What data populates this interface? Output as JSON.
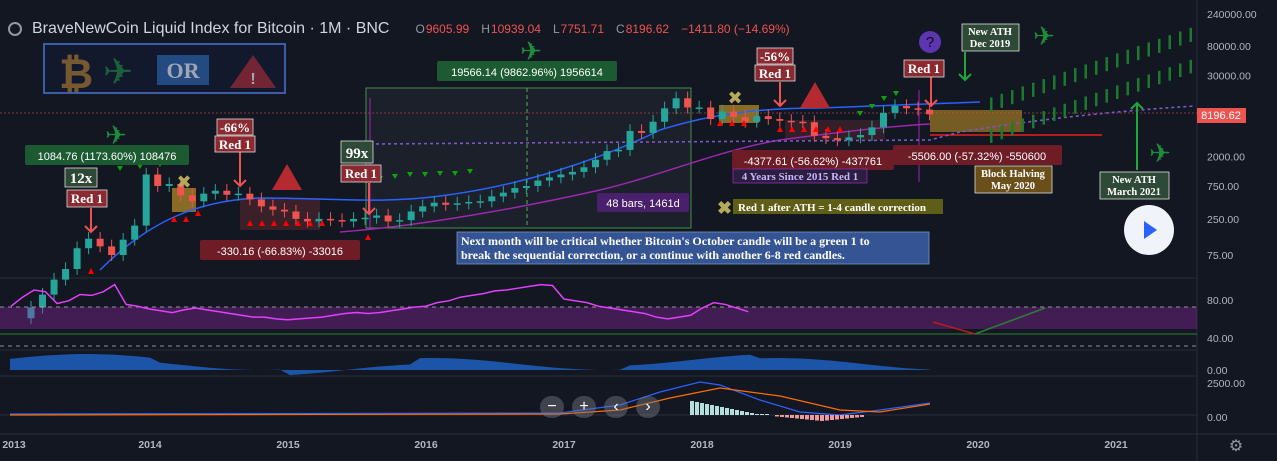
{
  "header": {
    "title": "BraveNewCoin Liquid Index for Bitcoin · 1M · BNC",
    "o_label": "O",
    "o": "9605.99",
    "h_label": "H",
    "h": "10939.04",
    "l_label": "L",
    "l": "7751.71",
    "c_label": "C",
    "c": "8196.62",
    "change": "−1411.80 (−14.69%)"
  },
  "logo_text": "OR",
  "price_tag": "8196.62",
  "zoom_controls": [
    "−",
    "+",
    "‹",
    "›"
  ],
  "colors": {
    "up": "#26a69a",
    "down": "#ef5350",
    "bg": "#131722",
    "rsi": "#e040fb",
    "ema": "#2962ff",
    "ma": "#9c27b0",
    "buy": "#0ba50b",
    "sell": "#ff0000"
  },
  "icons": [
    "bitcoin-icon",
    "airplane-icon",
    "warning-icon",
    "question-icon",
    "play-icon",
    "settings-icon"
  ],
  "annotations": {
    "count12": "12x",
    "count99": "99x",
    "red1": "Red 1",
    "m66": "-66%",
    "m56": "-56%",
    "gain1": "1084.76 (1173.60%) 108476",
    "gain2": "19566.14 (9862.96%) 1956614",
    "loss1": "-330.16 (-66.83%) -33016",
    "loss2": "-4377.61 (-56.62%) -437761",
    "loss3": "-5506.00 (-57.32%) -550600",
    "bars": "48 bars, 1461d",
    "four_years": "4 Years Since 2015 Red 1",
    "red1_after": "Red 1 after ATH = 1-4 candle correction",
    "critical": "Next month will be critical whether Bitcoin's October candle will be a green 1 to break the sequential correction, or a continue with another 6-8 red candles.",
    "ath2019a": "New ATH",
    "ath2019b": "Dec 2019",
    "ath2021a": "New ATH",
    "ath2021b": "March 2021",
    "halvinga": "Block Halving",
    "halvingb": "May 2020"
  },
  "chart_data": [
    {
      "type": "candlestick",
      "scale": "log",
      "x_ticks": [
        "2013",
        "2014",
        "2015",
        "2016",
        "2017",
        "2018",
        "2019",
        "2020",
        "2021"
      ],
      "y_ticks": [
        "240000.00",
        "80000.00",
        "30000.00",
        "2000.00",
        "750.00",
        "250.00",
        "75.00"
      ],
      "closes": [
        13,
        20,
        33,
        47,
        94,
        129,
        100,
        75,
        125,
        200,
        1100,
        750,
        800,
        550,
        450,
        580,
        640,
        560,
        580,
        480,
        380,
        340,
        320,
        250,
        230,
        250,
        240,
        230,
        250,
        260,
        280,
        230,
        240,
        320,
        380,
        430,
        400,
        420,
        440,
        450,
        530,
        600,
        700,
        750,
        900,
        1000,
        1100,
        1200,
        1400,
        1800,
        2400,
        2500,
        4700,
        4400,
        6400,
        10000,
        14000,
        10300,
        10300,
        7000,
        9000,
        7500,
        6400,
        7700,
        7000,
        6600,
        6400,
        6300,
        4000,
        3700,
        3450,
        3800,
        4100,
        5300,
        8600,
        10800,
        10000,
        9600,
        8196
      ],
      "rsi": {
        "ticks": [
          "80.00",
          "40.00"
        ],
        "values": [
          62,
          72,
          80,
          78,
          65,
          68,
          75,
          74,
          78,
          86,
          64,
          62,
          59,
          57,
          55,
          58,
          60,
          58,
          56,
          54,
          52,
          50,
          50,
          48,
          47,
          48,
          49,
          50,
          52,
          54,
          55,
          54,
          55,
          57,
          59,
          61,
          62,
          66,
          68,
          72,
          74,
          76,
          79,
          80,
          82,
          84,
          86,
          85,
          70,
          68,
          66,
          62,
          60,
          58,
          56,
          54,
          50,
          48,
          50,
          52,
          60,
          66,
          64,
          60,
          56
        ]
      },
      "momentum": {
        "ticks": [
          "0.00"
        ]
      },
      "macd": {
        "ticks": [
          "2500.00",
          "0.00"
        ]
      }
    }
  ]
}
